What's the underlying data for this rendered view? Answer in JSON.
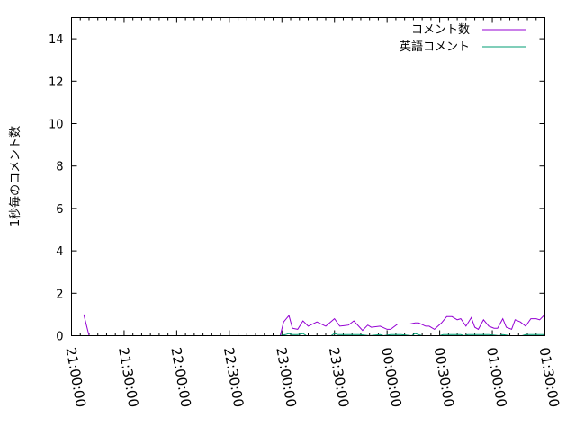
{
  "chart_data": {
    "type": "line",
    "title": "",
    "xlabel": "",
    "ylabel": "1秒毎のコメント数",
    "ylim": [
      0,
      15
    ],
    "xlim": [
      "21:00:00",
      "01:30:00"
    ],
    "yticks": [
      "0",
      "2",
      "4",
      "6",
      "8",
      "10",
      "12",
      "14"
    ],
    "xticks": [
      "21:00:00",
      "21:30:00",
      "22:00:00",
      "22:30:00",
      "23:00:00",
      "23:30:00",
      "00:00:00",
      "00:30:00",
      "01:00:00",
      "01:30:00"
    ],
    "grid": false,
    "legend_position": "top-right",
    "series": [
      {
        "name": "コメント数",
        "color": "#9400d3",
        "points": [
          [
            "21:07",
            1.0
          ],
          [
            "21:10",
            0
          ],
          [
            "22:59",
            0
          ],
          [
            "23:01",
            0.65
          ],
          [
            "23:04",
            0.95
          ],
          [
            "23:06",
            0.35
          ],
          [
            "23:09",
            0.3
          ],
          [
            "23:12",
            0.7
          ],
          [
            "23:15",
            0.45
          ],
          [
            "23:20",
            0.65
          ],
          [
            "23:25",
            0.45
          ],
          [
            "23:30",
            0.8
          ],
          [
            "23:33",
            0.45
          ],
          [
            "23:38",
            0.5
          ],
          [
            "23:41",
            0.7
          ],
          [
            "23:46",
            0.25
          ],
          [
            "23:49",
            0.5
          ],
          [
            "23:51",
            0.4
          ],
          [
            "23:56",
            0.45
          ],
          [
            "00:00",
            0.3
          ],
          [
            "00:02",
            0.3
          ],
          [
            "00:06",
            0.55
          ],
          [
            "00:13",
            0.55
          ],
          [
            "00:16",
            0.6
          ],
          [
            "00:18",
            0.6
          ],
          [
            "00:22",
            0.45
          ],
          [
            "00:24",
            0.45
          ],
          [
            "00:27",
            0.3
          ],
          [
            "00:31",
            0.6
          ],
          [
            "00:34",
            0.9
          ],
          [
            "00:37",
            0.9
          ],
          [
            "00:40",
            0.75
          ],
          [
            "00:42",
            0.8
          ],
          [
            "00:45",
            0.45
          ],
          [
            "00:48",
            0.85
          ],
          [
            "00:50",
            0.4
          ],
          [
            "00:52",
            0.3
          ],
          [
            "00:55",
            0.75
          ],
          [
            "00:58",
            0.45
          ],
          [
            "01:01",
            0.35
          ],
          [
            "01:03",
            0.35
          ],
          [
            "01:06",
            0.8
          ],
          [
            "01:08",
            0.4
          ],
          [
            "01:11",
            0.3
          ],
          [
            "01:13",
            0.75
          ],
          [
            "01:16",
            0.65
          ],
          [
            "01:19",
            0.45
          ],
          [
            "01:22",
            0.8
          ],
          [
            "01:25",
            0.8
          ],
          [
            "01:27",
            0.75
          ],
          [
            "01:30",
            1.0
          ]
        ]
      },
      {
        "name": "英語コメント",
        "color": "#009e73",
        "points": [
          [
            "22:59",
            0
          ],
          [
            "23:02",
            0.05
          ],
          [
            "23:04",
            0.1
          ],
          [
            "23:06",
            0.05
          ],
          [
            "23:09",
            0.05
          ],
          [
            "23:12",
            0.1
          ],
          [
            "23:14",
            0
          ],
          [
            "23:28",
            0
          ],
          [
            "23:30",
            0.1
          ],
          [
            "23:32",
            0.05
          ],
          [
            "23:36",
            0.05
          ],
          [
            "23:44",
            0.05
          ],
          [
            "23:50",
            0
          ],
          [
            "23:56",
            0.05
          ],
          [
            "23:58",
            0
          ],
          [
            "00:02",
            0.05
          ],
          [
            "00:08",
            0.05
          ],
          [
            "00:14",
            0
          ],
          [
            "00:16",
            0.1
          ],
          [
            "00:18",
            0.05
          ],
          [
            "00:20",
            0
          ],
          [
            "00:30",
            0
          ],
          [
            "00:32",
            0.05
          ],
          [
            "00:42",
            0.05
          ],
          [
            "00:44",
            0
          ],
          [
            "00:46",
            0.05
          ],
          [
            "00:50",
            0.05
          ],
          [
            "00:54",
            0.05
          ],
          [
            "00:58",
            0.05
          ],
          [
            "01:04",
            0
          ],
          [
            "01:06",
            0.05
          ],
          [
            "01:10",
            0
          ],
          [
            "01:17",
            0
          ],
          [
            "01:19",
            0.05
          ],
          [
            "01:27",
            0.05
          ],
          [
            "01:29",
            0.05
          ],
          [
            "01:30",
            0
          ]
        ]
      }
    ]
  }
}
